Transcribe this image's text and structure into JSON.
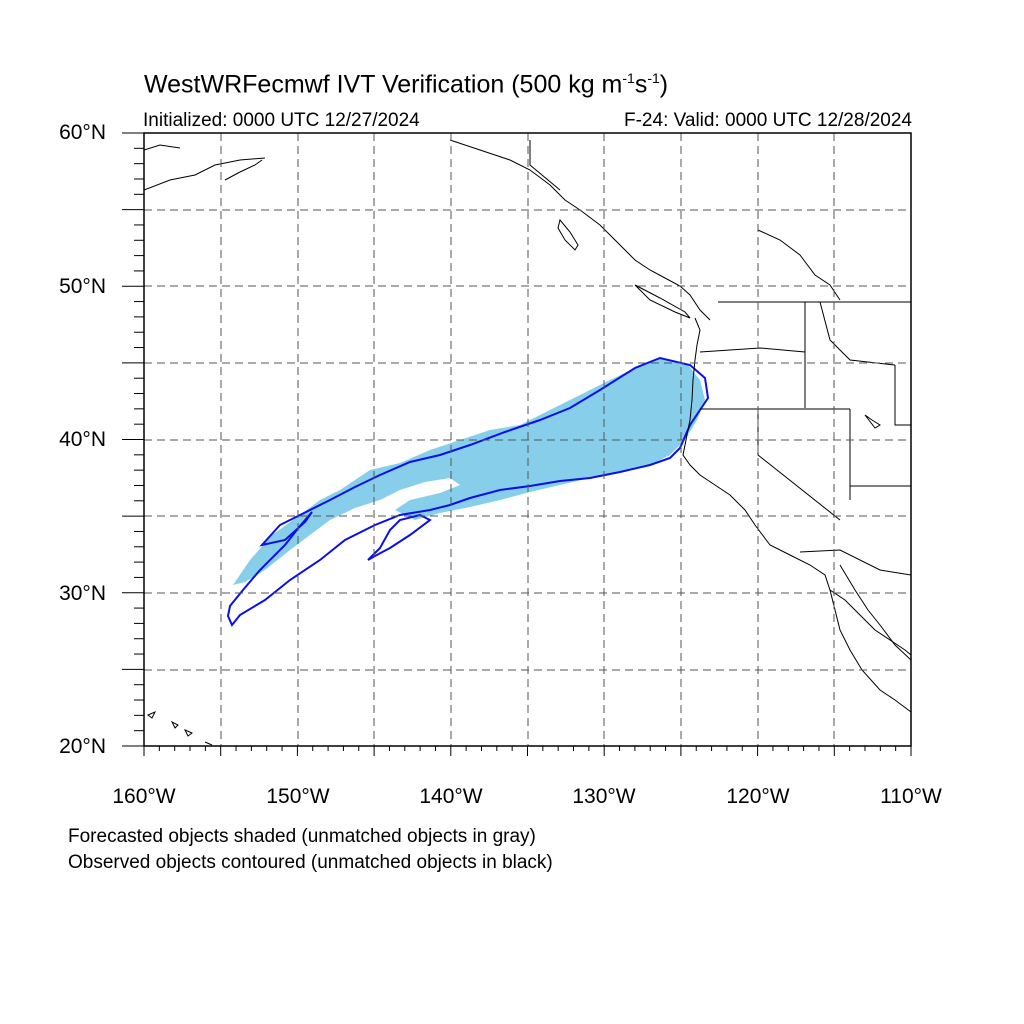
{
  "header": {
    "title_main": "WestWRFecmwf IVT Verification (500 kg m",
    "title_exp1": "-1",
    "title_mid": "s",
    "title_exp2": "-1",
    "title_end": ")",
    "initialized": "Initialized: 0000 UTC 12/27/2024",
    "valid": "F-24: Valid: 0000 UTC 12/28/2024"
  },
  "axes": {
    "lat_labels": [
      "60°N",
      "50°N",
      "40°N",
      "30°N",
      "20°N"
    ],
    "lon_labels": [
      "160°W",
      "150°W",
      "140°W",
      "130°W",
      "120°W",
      "110°W"
    ],
    "lon_range": [
      -160,
      -110
    ],
    "lat_range": [
      20,
      60
    ],
    "grid_spacing_deg": 5,
    "grid": "dashed"
  },
  "legend": {
    "forecast_note": "Forecasted objects shaded (unmatched objects in gray)",
    "observed_note": "Observed objects contoured (unmatched objects in black)"
  },
  "colors": {
    "forecast_fill": "#87ceeb",
    "observed_contour": "#0a10e6",
    "coastline": "#000000",
    "grid": "#555555"
  }
}
